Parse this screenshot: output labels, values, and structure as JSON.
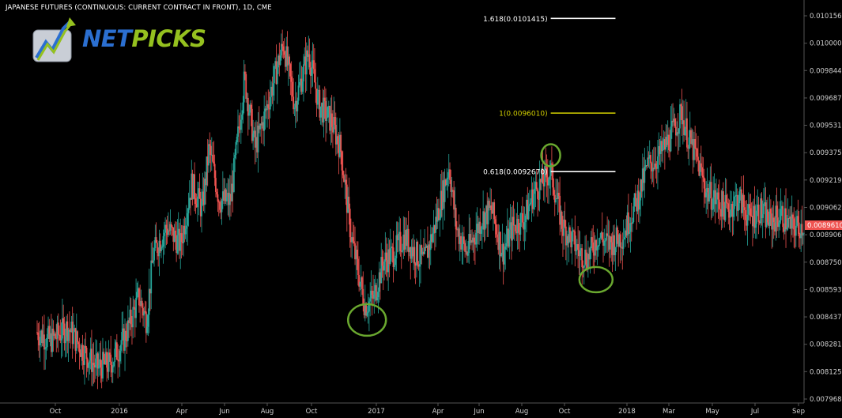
{
  "title": "JAPANESE FUTURES (CONTINUOUS: CURRENT CONTRACT IN FRONT), 1D, CME",
  "logo": {
    "part1": "NET",
    "part2": "PICKS"
  },
  "colors": {
    "background": "#000000",
    "up_candle": "#26a69a",
    "down_candle": "#ef5350",
    "price_badge": "#ef5350",
    "fib_white": "#ffffff",
    "fib_yellow": "#d4d000",
    "circle": "#6aa82f",
    "axis_text": "#d0d0d0"
  },
  "chart_data": {
    "type": "candlestick",
    "y_ticks": [
      "0.0101565",
      "0.0100000",
      "0.0098440",
      "0.0096875",
      "0.0095315",
      "0.0093750",
      "0.0092190",
      "0.0090625",
      "0.0089065",
      "0.0087500",
      "0.0085935",
      "0.0084375",
      "0.0082810",
      "0.0081250",
      "0.0079685"
    ],
    "y_range": [
      0.0079685,
      0.0101565
    ],
    "x_ticks": [
      "Oct",
      "2016",
      "Apr",
      "Jun",
      "Aug",
      "Oct",
      "2017",
      "Apr",
      "Jun",
      "Aug",
      "Oct",
      "2018",
      "Mar",
      "May",
      "Jul",
      "Sep"
    ],
    "x_range": [
      "2015-09-01",
      "2018-09-07"
    ],
    "last_price": "0.0089610",
    "last_value": 0.008961,
    "series": [
      {
        "points": [
          [
            "2015-09-01",
            0.00835
          ],
          [
            "2015-09-20",
            0.0083
          ],
          [
            "2015-10-15",
            0.00838
          ],
          [
            "2015-11-05",
            0.00825
          ],
          [
            "2015-11-25",
            0.00815
          ],
          [
            "2015-12-15",
            0.00817
          ],
          [
            "2016-01-05",
            0.00832
          ],
          [
            "2016-01-25",
            0.00855
          ],
          [
            "2016-02-05",
            0.00842
          ],
          [
            "2016-02-15",
            0.0088
          ],
          [
            "2016-03-05",
            0.00895
          ],
          [
            "2016-03-25",
            0.00885
          ],
          [
            "2016-04-10",
            0.0092
          ],
          [
            "2016-04-25",
            0.00905
          ],
          [
            "2016-05-05",
            0.0094
          ],
          [
            "2016-05-20",
            0.0091
          ],
          [
            "2016-06-05",
            0.0091
          ],
          [
            "2016-06-25",
            0.0098
          ],
          [
            "2016-07-10",
            0.0094
          ],
          [
            "2016-07-25",
            0.0096
          ],
          [
            "2016-08-10",
            0.00985
          ],
          [
            "2016-08-20",
            0.01
          ],
          [
            "2016-09-05",
            0.00965
          ],
          [
            "2016-09-25",
            0.00995
          ],
          [
            "2016-10-10",
            0.00965
          ],
          [
            "2016-10-28",
            0.00955
          ],
          [
            "2016-11-10",
            0.0094
          ],
          [
            "2016-11-25",
            0.0089
          ],
          [
            "2016-12-15",
            0.0085
          ],
          [
            "2016-12-28",
            0.00855
          ],
          [
            "2017-01-10",
            0.00875
          ],
          [
            "2017-01-25",
            0.0088
          ],
          [
            "2017-02-10",
            0.0089
          ],
          [
            "2017-02-25",
            0.0088
          ],
          [
            "2017-03-10",
            0.00875
          ],
          [
            "2017-03-25",
            0.00895
          ],
          [
            "2017-04-15",
            0.0093
          ],
          [
            "2017-04-25",
            0.00895
          ],
          [
            "2017-05-10",
            0.0088
          ],
          [
            "2017-06-01",
            0.009
          ],
          [
            "2017-06-15",
            0.00905
          ],
          [
            "2017-07-01",
            0.0088
          ],
          [
            "2017-07-15",
            0.00895
          ],
          [
            "2017-08-01",
            0.009
          ],
          [
            "2017-08-15",
            0.00915
          ],
          [
            "2017-09-08",
            0.00927
          ],
          [
            "2017-09-25",
            0.00895
          ],
          [
            "2017-10-05",
            0.0089
          ],
          [
            "2017-10-20",
            0.0088
          ],
          [
            "2017-11-01",
            0.00878
          ],
          [
            "2017-11-15",
            0.0089
          ],
          [
            "2017-12-01",
            0.00885
          ],
          [
            "2017-12-20",
            0.0089
          ],
          [
            "2018-01-10",
            0.0091
          ],
          [
            "2018-01-25",
            0.0093
          ],
          [
            "2018-02-10",
            0.00935
          ],
          [
            "2018-02-25",
            0.00945
          ],
          [
            "2018-03-15",
            0.0096
          ],
          [
            "2018-03-25",
            0.00945
          ],
          [
            "2018-04-05",
            0.00935
          ],
          [
            "2018-04-20",
            0.00915
          ],
          [
            "2018-05-05",
            0.0091
          ],
          [
            "2018-05-20",
            0.00905
          ],
          [
            "2018-06-05",
            0.00912
          ],
          [
            "2018-06-20",
            0.009
          ],
          [
            "2018-07-05",
            0.00905
          ],
          [
            "2018-07-20",
            0.00898
          ],
          [
            "2018-08-05",
            0.00902
          ],
          [
            "2018-08-20",
            0.00895
          ],
          [
            "2018-09-07",
            0.008961
          ]
        ]
      }
    ],
    "fib_levels": [
      {
        "label": "1.618(0.0101415)",
        "value": 0.0101415,
        "color": "#ffffff"
      },
      {
        "label": "1(0.0096010)",
        "value": 0.009601,
        "color": "#d4d000"
      },
      {
        "label": "0.618(0.0092670)",
        "value": 0.009267,
        "color": "#ffffff"
      }
    ],
    "fib_range": [
      "2017-09-08",
      "2017-12-10"
    ],
    "circles": [
      {
        "date": "2016-12-18",
        "value": 0.00842
      },
      {
        "date": "2017-09-08",
        "value": 0.00936
      },
      {
        "date": "2017-11-12",
        "value": 0.00865
      }
    ]
  }
}
